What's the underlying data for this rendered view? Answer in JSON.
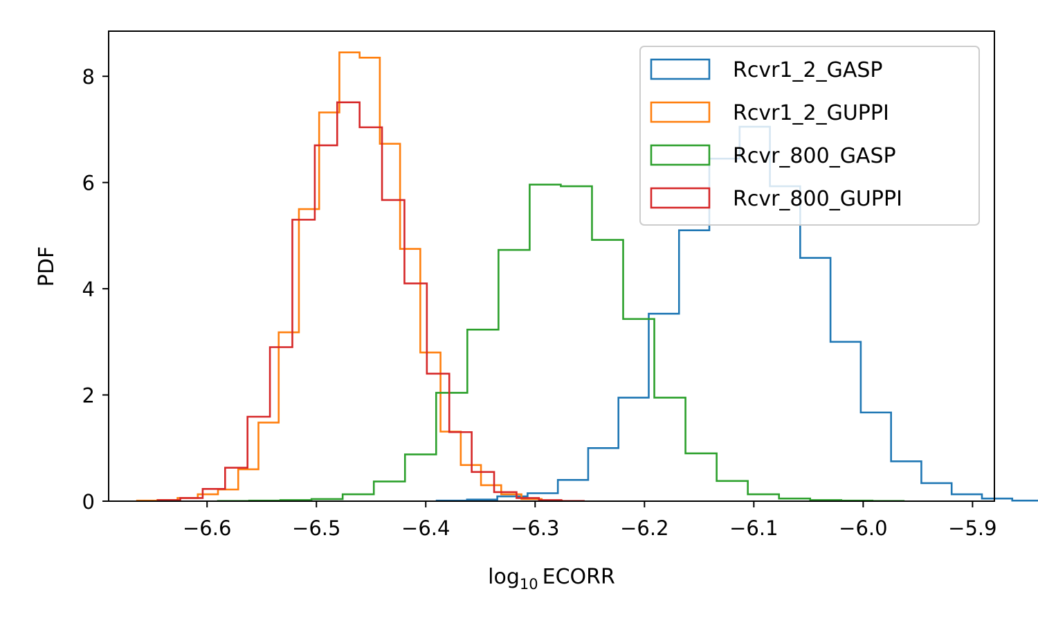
{
  "chart_data": {
    "type": "histogram",
    "xlabel": "log",
    "xlabel_sub": "10",
    "xlabel_rest": "ECORR",
    "ylabel": "PDF",
    "xlim": [
      -6.69,
      -5.88
    ],
    "ylim": [
      0,
      8.85
    ],
    "xticks": [
      -6.6,
      -6.5,
      -6.4,
      -6.3,
      -6.2,
      -6.1,
      -6.0,
      -5.9
    ],
    "xtick_labels": [
      "−6.6",
      "−6.5",
      "−6.4",
      "−6.3",
      "−6.2",
      "−6.1",
      "−6.0",
      "−5.9"
    ],
    "yticks": [
      0,
      2,
      4,
      6,
      8
    ],
    "ytick_labels": [
      "0",
      "2",
      "4",
      "6",
      "8"
    ],
    "grid": false,
    "legend_position": "top-right",
    "series": [
      {
        "name": "Rcvr1_2_GASP",
        "color": "#1f77b4",
        "start": -6.39,
        "width": 0.0277,
        "values": [
          0.01,
          0.03,
          0.09,
          0.15,
          0.4,
          1.0,
          1.95,
          3.53,
          5.1,
          6.45,
          7.05,
          5.93,
          4.58,
          3.0,
          1.67,
          0.75,
          0.34,
          0.13,
          0.05,
          0.01
        ]
      },
      {
        "name": "Rcvr1_2_GUPPI",
        "color": "#ff7f0e",
        "start": -6.664,
        "width": 0.0185,
        "values": [
          0.01,
          0.02,
          0.06,
          0.13,
          0.22,
          0.6,
          1.48,
          3.18,
          5.5,
          7.32,
          8.45,
          8.35,
          6.73,
          4.75,
          2.8,
          1.31,
          0.68,
          0.3,
          0.13,
          0.04,
          0.01
        ]
      },
      {
        "name": "Rcvr_800_GASP",
        "color": "#2ca02c",
        "start": -6.59,
        "width": 0.0285,
        "values": [
          0.005,
          0.01,
          0.02,
          0.04,
          0.13,
          0.37,
          0.88,
          2.04,
          3.23,
          4.73,
          5.96,
          5.93,
          4.92,
          3.43,
          1.95,
          0.9,
          0.38,
          0.13,
          0.05,
          0.02,
          0.01,
          0.005
        ]
      },
      {
        "name": "Rcvr_800_GUPPI",
        "color": "#d62728",
        "start": -6.645,
        "width": 0.0205,
        "values": [
          0.02,
          0.06,
          0.23,
          0.63,
          1.59,
          2.9,
          5.3,
          6.7,
          7.51,
          7.04,
          5.67,
          4.1,
          2.4,
          1.3,
          0.55,
          0.17,
          0.06,
          0.02,
          0.005
        ]
      }
    ]
  }
}
